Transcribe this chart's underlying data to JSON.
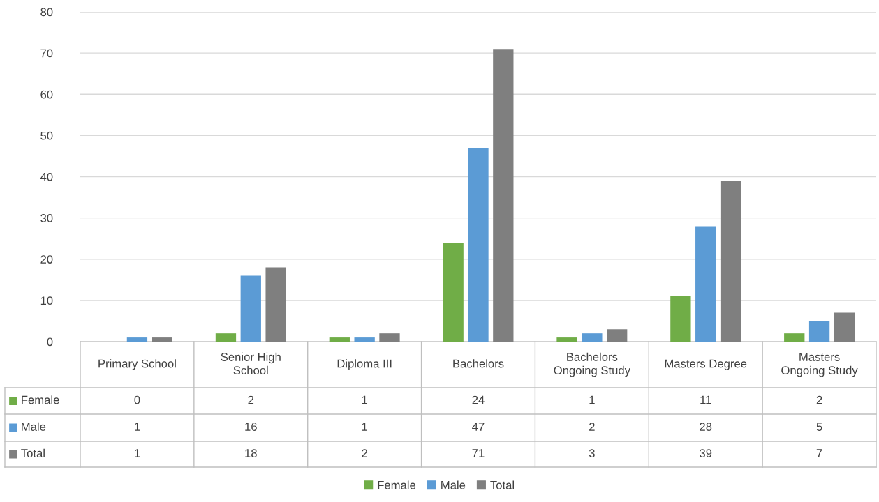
{
  "chart_data": {
    "type": "bar",
    "categories": [
      "Primary School",
      "Senior High School",
      "Diploma III",
      "Bachelors",
      "Bachelors Ongoing Study",
      "Masters Degree",
      "Masters Ongoing Study"
    ],
    "series": [
      {
        "name": "Female",
        "color": "#70ad47",
        "values": [
          0,
          2,
          1,
          24,
          1,
          11,
          2
        ]
      },
      {
        "name": "Male",
        "color": "#5b9bd5",
        "values": [
          1,
          16,
          1,
          47,
          2,
          28,
          5
        ]
      },
      {
        "name": "Total",
        "color": "#7f7f7f",
        "values": [
          1,
          18,
          2,
          71,
          3,
          39,
          7
        ]
      }
    ],
    "ylim": [
      0,
      80
    ],
    "yticks": [
      0,
      10,
      20,
      30,
      40,
      50,
      60,
      70,
      80
    ],
    "grid": "y",
    "legend": "bottom",
    "data_labels": true
  }
}
